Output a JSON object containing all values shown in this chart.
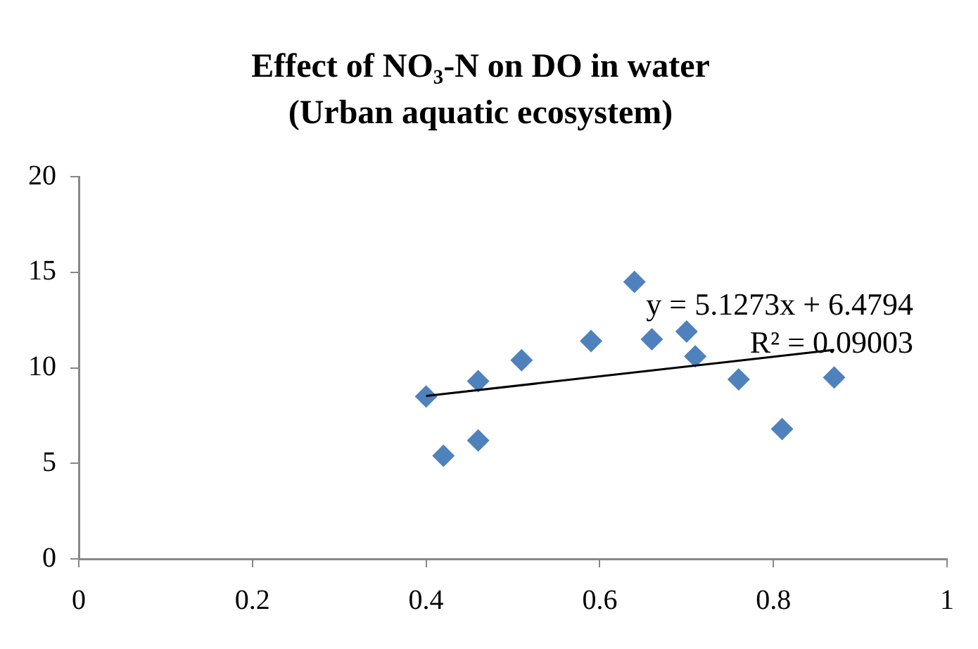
{
  "chart_data": {
    "type": "scatter",
    "title": "Effect of NO₃-N on DO in water",
    "subtitle": "(Urban aquatic ecosystem)",
    "x": [
      0.4,
      0.42,
      0.46,
      0.46,
      0.51,
      0.59,
      0.64,
      0.66,
      0.7,
      0.71,
      0.76,
      0.81,
      0.87
    ],
    "series": [
      {
        "color": "#4f81bd",
        "values": [
          8.5,
          5.4,
          9.3,
          6.2,
          10.4,
          11.4,
          14.5,
          11.5,
          11.9,
          10.6,
          9.4,
          6.8,
          9.5
        ]
      },
      {
        "type": "line",
        "color": "#000000",
        "x": [
          0.4,
          0.87
        ],
        "values": [
          8.53,
          10.94
        ],
        "marker": "none"
      }
    ],
    "annotations": [
      "y = 5.1273x + 6.4794",
      "R² = 0.09003"
    ],
    "xlim": [
      0,
      1
    ],
    "xticks": [
      0,
      0.2,
      0.4,
      0.6,
      0.8,
      1
    ],
    "ylim": [
      0,
      20
    ],
    "yticks": [
      0,
      5,
      10,
      15,
      20
    ],
    "grid": false,
    "legend": false,
    "marker": "diamond"
  }
}
